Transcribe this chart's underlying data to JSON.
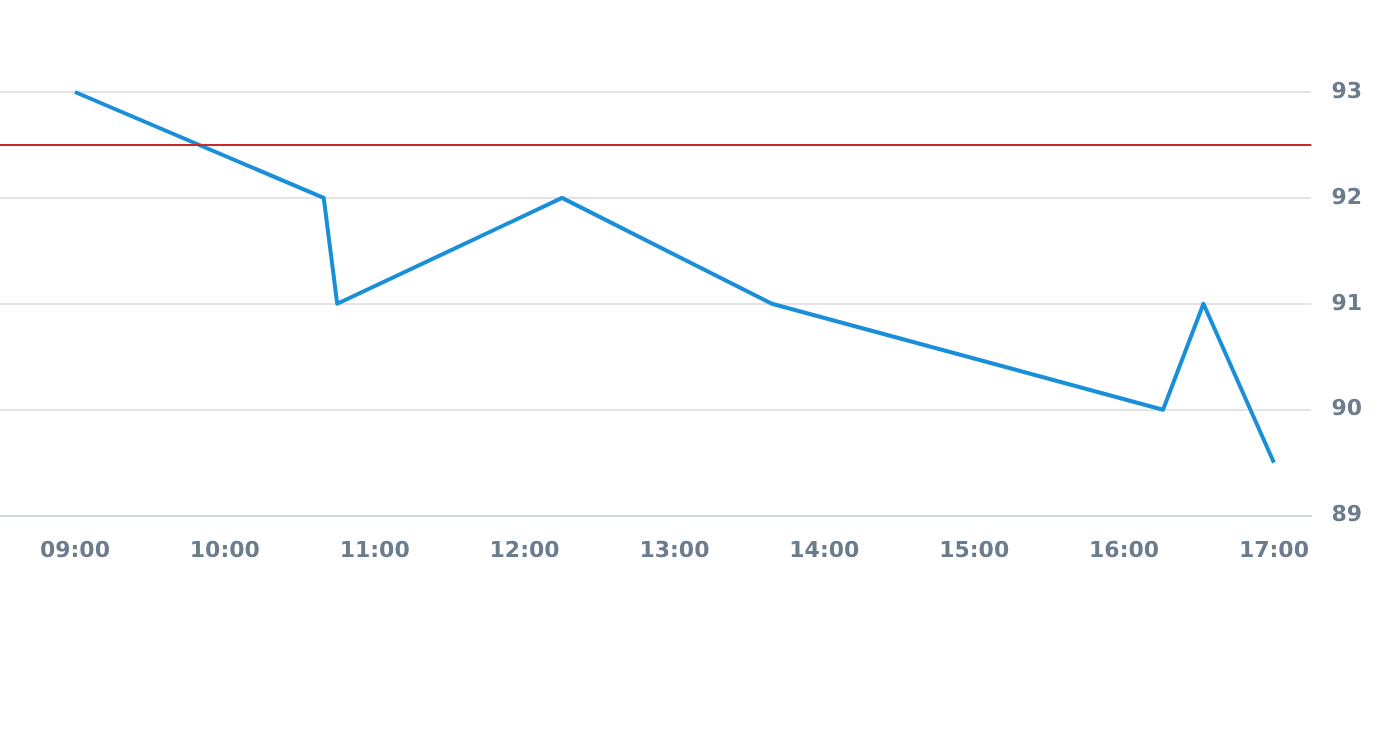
{
  "chart_data": {
    "type": "line",
    "x": [
      9,
      10.66,
      10.75,
      12.25,
      13.65,
      16.26,
      16.53,
      17
    ],
    "series": [
      {
        "color": "#1a8fd9",
        "values": [
          93,
          92,
          91,
          92,
          91,
          90,
          91,
          89.5
        ]
      }
    ],
    "xlim": [
      8.5,
      17.25
    ],
    "xticks": [
      {
        "value": 9,
        "label": "09:00"
      },
      {
        "value": 10,
        "label": "10:00"
      },
      {
        "value": 11,
        "label": "11:00"
      },
      {
        "value": 12,
        "label": "12:00"
      },
      {
        "value": 13,
        "label": "13:00"
      },
      {
        "value": 14,
        "label": "14:00"
      },
      {
        "value": 15,
        "label": "15:00"
      },
      {
        "value": 16,
        "label": "16:00"
      },
      {
        "value": 17,
        "label": "17:00"
      }
    ],
    "ylim": [
      89,
      93
    ],
    "yticks": [
      89,
      90,
      91,
      92,
      93
    ],
    "ref_lines": [
      {
        "axis": "y",
        "value": 92.5,
        "color": "#cc2a2a"
      }
    ],
    "grid": "y",
    "legend": false,
    "marker": "none",
    "line_style": "solid"
  }
}
